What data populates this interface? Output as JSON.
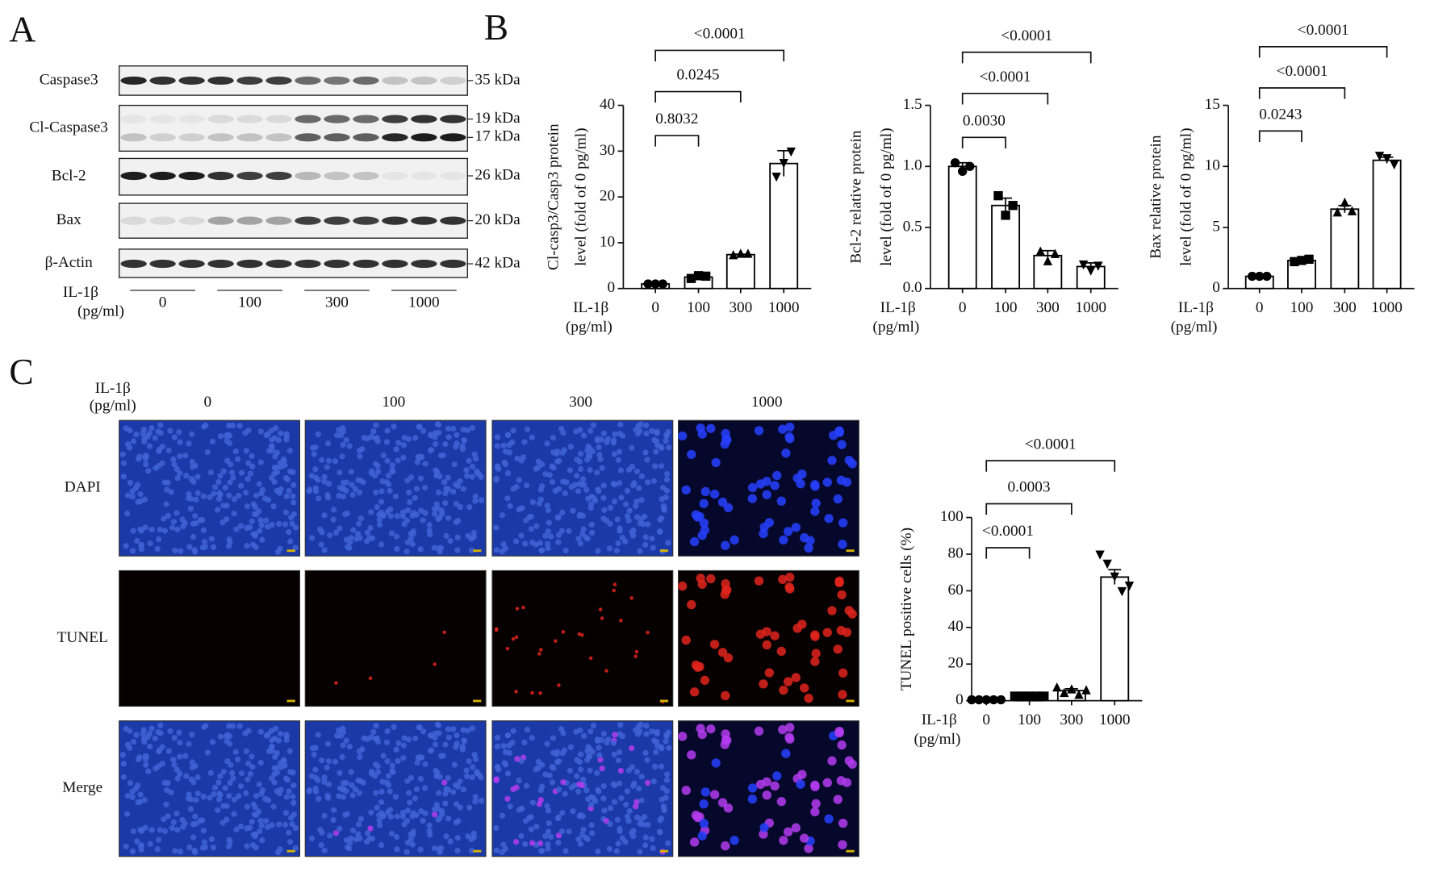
{
  "panel_labels": [
    "A",
    "B",
    "C"
  ],
  "western_blot": {
    "rows": [
      {
        "label": "Caspase3",
        "markers": [
          "35 kDa"
        ]
      },
      {
        "label": "Cl-Caspase3",
        "markers": [
          "19 kDa",
          "17 kDa"
        ]
      },
      {
        "label": "Bcl-2",
        "markers": [
          "26 kDa"
        ]
      },
      {
        "label": "Bax",
        "markers": [
          "20 kDa"
        ]
      },
      {
        "label": "β-Actin",
        "markers": [
          "42 kDa"
        ]
      }
    ],
    "treatment": [
      "IL-1β",
      "(pg/ml)"
    ],
    "groups": [
      "0",
      "100",
      "300",
      "1000"
    ]
  },
  "microscopy": {
    "treatment": [
      "IL-1β",
      "(pg/ml)"
    ],
    "columns": [
      "0",
      "100",
      "300",
      "1000"
    ],
    "rows": [
      "DAPI",
      "TUNEL",
      "Merge"
    ]
  },
  "chart_data": [
    {
      "type": "bar",
      "ylabel": [
        "Cl-casp3/Casp3 protein",
        "level (fold of 0 pg/ml)"
      ],
      "xlabel": [
        "IL-1β",
        "(pg/ml)"
      ],
      "categories": [
        "0",
        "100",
        "300",
        "1000"
      ],
      "values": [
        1,
        2.5,
        7.4,
        27.3
      ],
      "errors": [
        0.05,
        0.2,
        0.1,
        2.8
      ],
      "points": [
        [
          1,
          1,
          1
        ],
        [
          2.2,
          2.8,
          2.7
        ],
        [
          7.2,
          7.5,
          7.5
        ],
        [
          24.5,
          27.5,
          30
        ]
      ],
      "markers": [
        "circle",
        "square",
        "triangle-up",
        "triangle-down"
      ],
      "ylim": [
        0,
        40
      ],
      "yticks": [
        0,
        10,
        20,
        30,
        40
      ],
      "comparisons": [
        "0.8032",
        "0.0245",
        "<0.0001"
      ],
      "color": "#000000"
    },
    {
      "type": "bar",
      "ylabel": [
        "Bcl-2 relative protein",
        "level (fold of 0 pg/ml)"
      ],
      "xlabel": [
        "IL-1β",
        "(pg/ml)"
      ],
      "categories": [
        "0",
        "100",
        "300",
        "1000"
      ],
      "values": [
        1.0,
        0.68,
        0.27,
        0.18
      ],
      "errors": [
        0.03,
        0.06,
        0.04,
        0.03
      ],
      "points": [
        [
          1.03,
          0.96,
          1.0
        ],
        [
          0.76,
          0.6,
          0.68
        ],
        [
          0.3,
          0.22,
          0.28
        ],
        [
          0.2,
          0.15,
          0.19
        ]
      ],
      "markers": [
        "circle",
        "square",
        "triangle-up",
        "triangle-down"
      ],
      "ylim": [
        0,
        1.5
      ],
      "yticks": [
        {
          "value": 0,
          "label": "0.0"
        },
        {
          "value": 0.5,
          "label": "0.5"
        },
        {
          "value": 1,
          "label": "1.0"
        },
        {
          "value": 1.5,
          "label": "1.5"
        }
      ],
      "comparisons": [
        "0.0030",
        "<0.0001",
        "<0.0001"
      ],
      "color": "#000000"
    },
    {
      "type": "bar",
      "ylabel": [
        "Bax relative protein",
        "level (fold of 0 pg/ml)"
      ],
      "xlabel": [
        "IL-1β",
        "(pg/ml)"
      ],
      "categories": [
        "0",
        "100",
        "300",
        "1000"
      ],
      "values": [
        1,
        2.3,
        6.5,
        10.5
      ],
      "errors": [
        0.05,
        0.1,
        0.3,
        0.25
      ],
      "points": [
        [
          1,
          1,
          1
        ],
        [
          2.2,
          2.3,
          2.4
        ],
        [
          6.2,
          7.0,
          6.3
        ],
        [
          10.9,
          10.7,
          10.2
        ]
      ],
      "markers": [
        "circle",
        "square",
        "triangle-up",
        "triangle-down"
      ],
      "ylim": [
        0,
        15
      ],
      "yticks": [
        0,
        5,
        10,
        15
      ],
      "comparisons": [
        "0.0243",
        "<0.0001",
        "<0.0001"
      ],
      "color": "#000000"
    },
    {
      "type": "bar",
      "ylabel": [
        "TUNEL positive cells (%)"
      ],
      "xlabel": [
        "IL-1β",
        "(pg/ml)"
      ],
      "categories": [
        "0",
        "100",
        "300",
        "1000"
      ],
      "values": [
        0.5,
        2.5,
        5.5,
        67.5
      ],
      "errors": [
        0.1,
        0.2,
        1,
        4
      ],
      "points": [
        [
          0.5,
          0.5,
          0.5,
          0.5,
          0.5
        ],
        [
          2.5,
          2.5,
          2.5,
          2.5,
          2.5
        ],
        [
          7,
          4,
          6,
          3,
          5.5
        ],
        [
          80,
          75,
          68,
          60,
          63
        ]
      ],
      "markers": [
        "circle",
        "square",
        "triangle-up",
        "triangle-down"
      ],
      "ylim": [
        0,
        100
      ],
      "yticks": [
        0,
        20,
        40,
        60,
        80,
        100
      ],
      "comparisons": [
        "<0.0001",
        "0.0003",
        "<0.0001"
      ],
      "color": "#000000"
    }
  ]
}
